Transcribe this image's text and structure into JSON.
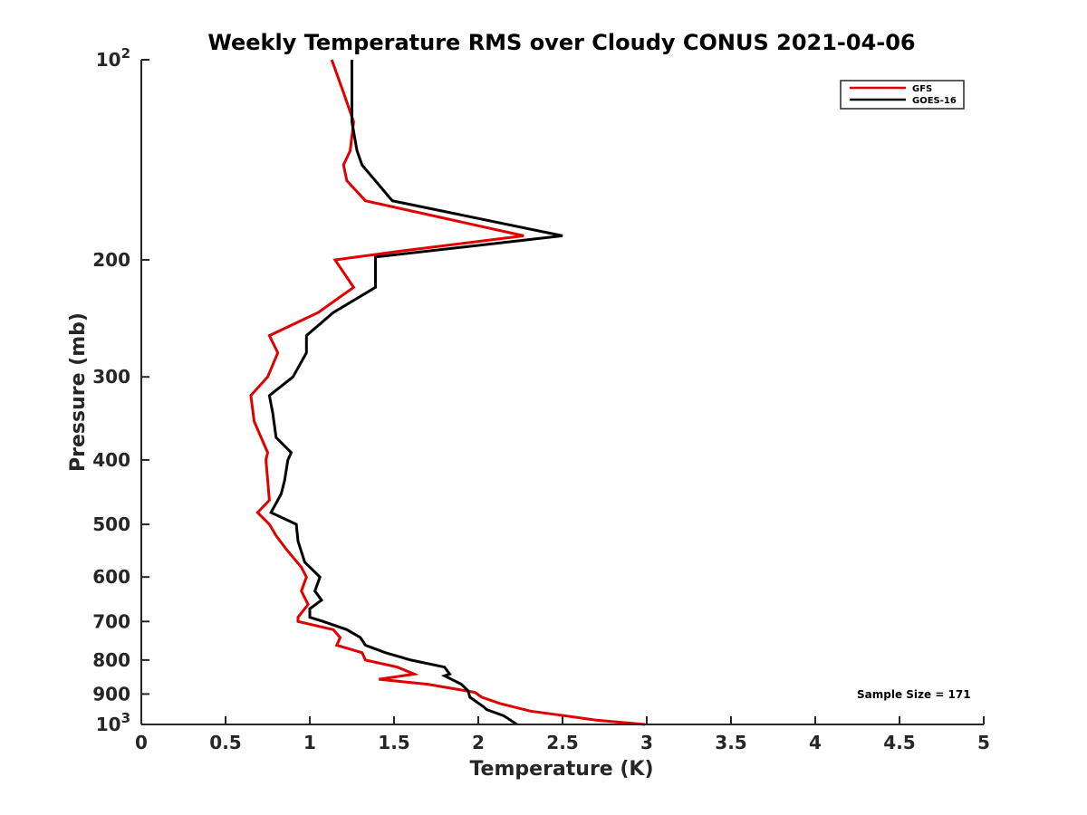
{
  "chart_data": {
    "type": "line",
    "title": "Weekly Temperature RMS over Cloudy CONUS 2021-04-06",
    "xlabel": "Temperature (K)",
    "ylabel": "Pressure (mb)",
    "xlim": [
      0,
      5
    ],
    "ylim": [
      100,
      1000
    ],
    "y_scale": "log",
    "y_reversed": true,
    "grid": false,
    "legend_position": "top-right",
    "x_ticks": [
      "0",
      "0.5",
      "1",
      "1.5",
      "2",
      "2.5",
      "3",
      "3.5",
      "4",
      "4.5",
      "5"
    ],
    "y_ticks": [
      {
        "value": 100,
        "base": "10",
        "exp": "2",
        "label": ""
      },
      {
        "value": 200,
        "label": "200"
      },
      {
        "value": 300,
        "label": "300"
      },
      {
        "value": 400,
        "label": "400"
      },
      {
        "value": 500,
        "label": "500"
      },
      {
        "value": 600,
        "label": "600"
      },
      {
        "value": 700,
        "label": "700"
      },
      {
        "value": 800,
        "label": "800"
      },
      {
        "value": 900,
        "label": "900"
      },
      {
        "value": 1000,
        "base": "10",
        "exp": "3",
        "label": ""
      }
    ],
    "annotation": "Sample Size = 171",
    "series": [
      {
        "name": "GFS",
        "color": "#e00000",
        "points": [
          [
            1.13,
            100
          ],
          [
            1.2,
            112
          ],
          [
            1.26,
            124
          ],
          [
            1.24,
            137
          ],
          [
            1.2,
            144
          ],
          [
            1.22,
            152
          ],
          [
            1.33,
            163
          ],
          [
            2.27,
            184
          ],
          [
            1.54,
            194
          ],
          [
            1.15,
            200
          ],
          [
            1.26,
            220
          ],
          [
            1.05,
            240
          ],
          [
            0.76,
            260
          ],
          [
            0.81,
            276
          ],
          [
            0.75,
            300
          ],
          [
            0.65,
            320
          ],
          [
            0.67,
            350
          ],
          [
            0.75,
            390
          ],
          [
            0.74,
            400
          ],
          [
            0.76,
            460
          ],
          [
            0.69,
            480
          ],
          [
            0.76,
            500
          ],
          [
            0.8,
            520
          ],
          [
            0.86,
            545
          ],
          [
            0.95,
            580
          ],
          [
            0.98,
            600
          ],
          [
            0.95,
            630
          ],
          [
            0.99,
            660
          ],
          [
            0.93,
            690
          ],
          [
            0.93,
            700
          ],
          [
            1.14,
            720
          ],
          [
            1.18,
            740
          ],
          [
            1.16,
            760
          ],
          [
            1.31,
            780
          ],
          [
            1.33,
            800
          ],
          [
            1.52,
            820
          ],
          [
            1.62,
            840
          ],
          [
            1.41,
            855
          ],
          [
            1.7,
            870
          ],
          [
            1.98,
            895
          ],
          [
            2.02,
            910
          ],
          [
            2.13,
            930
          ],
          [
            2.31,
            955
          ],
          [
            2.51,
            970
          ],
          [
            2.7,
            985
          ],
          [
            2.99,
            1000
          ]
        ]
      },
      {
        "name": "GOES-16",
        "color": "#000000",
        "points": [
          [
            1.25,
            100
          ],
          [
            1.25,
            112
          ],
          [
            1.25,
            124
          ],
          [
            1.28,
            137
          ],
          [
            1.31,
            144
          ],
          [
            1.49,
            163
          ],
          [
            2.5,
            184
          ],
          [
            1.39,
            198
          ],
          [
            1.39,
            200
          ],
          [
            1.39,
            220
          ],
          [
            1.14,
            240
          ],
          [
            0.98,
            260
          ],
          [
            0.98,
            276
          ],
          [
            0.9,
            300
          ],
          [
            0.76,
            320
          ],
          [
            0.78,
            340
          ],
          [
            0.8,
            370
          ],
          [
            0.89,
            390
          ],
          [
            0.87,
            400
          ],
          [
            0.85,
            430
          ],
          [
            0.83,
            450
          ],
          [
            0.77,
            480
          ],
          [
            0.92,
            500
          ],
          [
            0.93,
            530
          ],
          [
            0.97,
            570
          ],
          [
            1.06,
            600
          ],
          [
            1.03,
            630
          ],
          [
            1.07,
            650
          ],
          [
            1.0,
            670
          ],
          [
            1.0,
            690
          ],
          [
            1.08,
            700
          ],
          [
            1.22,
            720
          ],
          [
            1.3,
            740
          ],
          [
            1.33,
            760
          ],
          [
            1.45,
            780
          ],
          [
            1.6,
            800
          ],
          [
            1.8,
            820
          ],
          [
            1.83,
            840
          ],
          [
            1.8,
            845
          ],
          [
            1.9,
            870
          ],
          [
            1.94,
            890
          ],
          [
            1.95,
            910
          ],
          [
            2.03,
            940
          ],
          [
            2.05,
            950
          ],
          [
            2.15,
            970
          ],
          [
            2.23,
            1000
          ]
        ]
      }
    ]
  }
}
